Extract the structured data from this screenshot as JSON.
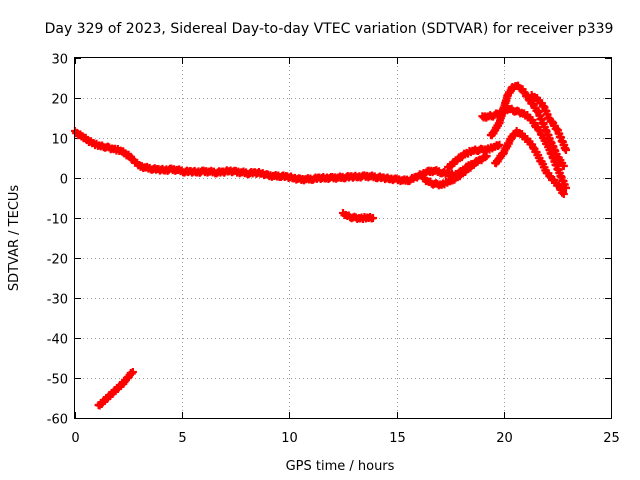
{
  "chart_data": {
    "type": "scatter",
    "title": "Day 329 of 2023, Sidereal Day-to-day VTEC variation (SDTVAR) for receiver p339",
    "xlabel": "GPS time / hours",
    "ylabel": "SDTVAR / TECUs",
    "xlim": [
      0,
      25
    ],
    "ylim": [
      -60,
      30
    ],
    "xticks": [
      "0",
      "5",
      "10",
      "15",
      "20",
      "25"
    ],
    "yticks": [
      "30",
      "20",
      "10",
      "0",
      "-10",
      "-20",
      "-30",
      "-40",
      "-50",
      "-60"
    ],
    "grid": true,
    "marker": "plus",
    "color": "#ff0000",
    "series": [
      {
        "name": "main_trace",
        "x": [
          0.0,
          0.2,
          0.4,
          0.6,
          0.8,
          1.0,
          1.2,
          1.4,
          1.6,
          1.8,
          2.0,
          2.2,
          2.4,
          2.6,
          2.7,
          3.0,
          3.3,
          3.6,
          3.9,
          4.2,
          4.5,
          4.8,
          5.1,
          5.4,
          5.7,
          6.0,
          6.3,
          6.6,
          6.9,
          7.2,
          7.5,
          7.8,
          8.1,
          8.4,
          8.7,
          9.0,
          9.3,
          9.6,
          9.9,
          10.2,
          10.5,
          10.8,
          11.1,
          11.4,
          11.7,
          12.0,
          12.3,
          12.6,
          12.9,
          13.2,
          13.5,
          13.8,
          14.1,
          14.4,
          14.7,
          15.0,
          15.3,
          15.6,
          15.9,
          16.2,
          16.5,
          16.8,
          17.1,
          17.4,
          17.7,
          18.0,
          18.3,
          18.6,
          18.9,
          19.2
        ],
        "y": [
          11.5,
          10.8,
          10.2,
          9.4,
          8.8,
          8.3,
          7.9,
          7.8,
          7.5,
          7.3,
          7.0,
          6.6,
          5.9,
          5.2,
          4.6,
          3.0,
          2.6,
          2.3,
          2.1,
          2.0,
          2.1,
          2.0,
          1.6,
          1.6,
          1.5,
          1.6,
          1.6,
          1.4,
          1.5,
          1.8,
          1.5,
          1.4,
          1.2,
          1.3,
          1.2,
          0.6,
          0.5,
          0.5,
          0.3,
          0.0,
          -0.4,
          -0.3,
          -0.2,
          0.0,
          0.0,
          0.0,
          0.1,
          0.2,
          0.3,
          0.3,
          0.4,
          0.4,
          0.2,
          0.0,
          -0.2,
          -0.4,
          -0.6,
          -0.5,
          0.2,
          1.0,
          1.6,
          1.8,
          1.4,
          1.0,
          0.7,
          1.5,
          2.8,
          3.7,
          4.5,
          5.5
        ]
      },
      {
        "name": "band_low",
        "x": [
          16.3,
          16.5,
          16.7,
          16.9,
          17.1,
          17.3,
          17.5,
          17.7,
          17.9,
          18.1,
          18.3,
          18.5,
          18.7
        ],
        "y": [
          -0.5,
          -1.0,
          -1.4,
          -1.6,
          -1.6,
          -1.2,
          -0.8,
          -0.2,
          0.5,
          1.3,
          2.2,
          3.0,
          3.8
        ]
      },
      {
        "name": "band_high",
        "x": [
          17.4,
          17.6,
          17.8,
          18.0,
          18.2,
          18.4,
          18.6,
          18.8,
          19.0,
          19.2,
          19.4,
          19.6,
          19.8
        ],
        "y": [
          2.5,
          3.5,
          4.5,
          5.3,
          6.0,
          6.5,
          6.8,
          7.0,
          7.1,
          7.2,
          7.4,
          7.8,
          8.3
        ]
      },
      {
        "name": "arc_1",
        "x": [
          19.0,
          19.3,
          19.5,
          19.7,
          19.9,
          20.1,
          20.3,
          20.5,
          20.7,
          20.9,
          21.1,
          21.3,
          21.5,
          21.7,
          21.9,
          22.1,
          22.3,
          22.5,
          22.7,
          22.9
        ],
        "y": [
          15.2,
          15.4,
          15.6,
          16.0,
          16.5,
          17.0,
          17.2,
          16.8,
          16.5,
          16.2,
          15.5,
          14.5,
          13.0,
          11.5,
          9.5,
          7.5,
          5.0,
          2.5,
          0.0,
          -2.5
        ]
      },
      {
        "name": "arc_2",
        "x": [
          19.4,
          19.6,
          19.8,
          20.0,
          20.2,
          20.4,
          20.6,
          20.8,
          21.0,
          21.2,
          21.4,
          21.6,
          21.8,
          22.0,
          22.2,
          22.4,
          22.6,
          22.8
        ],
        "y": [
          10.5,
          12.0,
          14.0,
          17.5,
          21.0,
          22.5,
          23.0,
          22.5,
          21.0,
          19.5,
          18.0,
          16.5,
          14.0,
          11.5,
          9.0,
          6.5,
          4.5,
          3.0
        ]
      },
      {
        "name": "arc_3",
        "x": [
          19.6,
          19.8,
          20.0,
          20.2,
          20.4,
          20.6,
          20.8,
          21.0,
          21.2,
          21.4,
          21.6,
          21.8,
          22.0,
          22.2,
          22.4,
          22.6,
          22.8
        ],
        "y": [
          3.5,
          5.0,
          6.5,
          8.5,
          10.5,
          11.5,
          11.0,
          10.0,
          9.0,
          7.5,
          5.5,
          3.5,
          1.5,
          0.0,
          -1.0,
          -2.5,
          -4.0
        ]
      },
      {
        "name": "arc_4",
        "x": [
          21.3,
          21.5,
          21.7,
          21.9,
          22.1,
          22.3,
          22.5,
          22.7,
          22.9
        ],
        "y": [
          20.5,
          20.0,
          19.0,
          17.5,
          15.0,
          13.5,
          12.0,
          9.5,
          7.0
        ]
      },
      {
        "name": "segment_mid",
        "x": [
          12.5,
          12.7,
          12.9,
          13.1,
          13.3,
          13.5,
          13.7,
          13.9
        ],
        "y": [
          -9.0,
          -9.5,
          -9.8,
          -10.0,
          -10.0,
          -10.0,
          -10.0,
          -10.0
        ]
      },
      {
        "name": "segment_low",
        "x": [
          1.1,
          1.3,
          1.5,
          1.7,
          1.9,
          2.1,
          2.3,
          2.5,
          2.7
        ],
        "y": [
          -57.0,
          -56.0,
          -55.0,
          -54.0,
          -53.0,
          -52.0,
          -51.0,
          -49.5,
          -48.5
        ]
      }
    ]
  }
}
